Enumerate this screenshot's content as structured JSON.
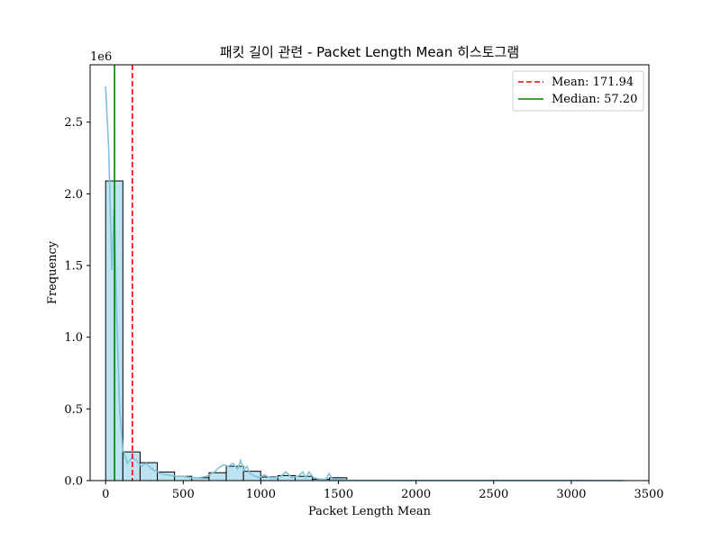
{
  "chart_data": {
    "type": "histogram",
    "title": "패킷 길이 관련 - Packet Length Mean 히스토그램",
    "xlabel": "Packet Length Mean",
    "ylabel": "Frequency",
    "y_offset_label": "1e6",
    "xlim": [
      -100,
      3500
    ],
    "ylim": [
      0,
      2.9
    ],
    "x_ticks": [
      0,
      500,
      1000,
      1500,
      2000,
      2500,
      3000,
      3500
    ],
    "x_tick_labels": [
      "0",
      "500",
      "1000",
      "1500",
      "2000",
      "2500",
      "3000",
      "3500"
    ],
    "y_ticks": [
      0,
      0.5,
      1.0,
      1.5,
      2.0,
      2.5
    ],
    "y_tick_labels": [
      "0.0",
      "0.5",
      "1.0",
      "1.5",
      "2.0",
      "2.5"
    ],
    "bins": [
      {
        "x0": 0,
        "x1": 111,
        "value": 2.09
      },
      {
        "x0": 111,
        "x1": 222,
        "value": 0.2
      },
      {
        "x0": 222,
        "x1": 333,
        "value": 0.125
      },
      {
        "x0": 333,
        "x1": 444,
        "value": 0.06
      },
      {
        "x0": 444,
        "x1": 555,
        "value": 0.03
      },
      {
        "x0": 555,
        "x1": 666,
        "value": 0.02
      },
      {
        "x0": 666,
        "x1": 777,
        "value": 0.055
      },
      {
        "x0": 777,
        "x1": 888,
        "value": 0.1
      },
      {
        "x0": 888,
        "x1": 999,
        "value": 0.065
      },
      {
        "x0": 999,
        "x1": 1110,
        "value": 0.025
      },
      {
        "x0": 1110,
        "x1": 1221,
        "value": 0.035
      },
      {
        "x0": 1221,
        "x1": 1332,
        "value": 0.03
      },
      {
        "x0": 1332,
        "x1": 1443,
        "value": 0.01
      },
      {
        "x0": 1443,
        "x1": 1554,
        "value": 0.02
      }
    ],
    "kde": {
      "x": [
        0,
        20,
        40,
        55,
        70,
        90,
        110,
        140,
        170,
        200,
        230,
        260,
        300,
        350,
        400,
        450,
        500,
        550,
        600,
        650,
        700,
        730,
        760,
        790,
        820,
        850,
        870,
        890,
        910,
        930,
        960,
        990,
        1020,
        1060,
        1100,
        1130,
        1160,
        1200,
        1240,
        1270,
        1290,
        1310,
        1340,
        1380,
        1420,
        1440,
        1460,
        1500,
        1560,
        1700,
        2000,
        2500,
        3000,
        3340
      ],
      "y": [
        2.75,
        2.3,
        1.47,
        1.9,
        1.2,
        0.5,
        0.22,
        0.12,
        0.16,
        0.14,
        0.1,
        0.12,
        0.08,
        0.05,
        0.04,
        0.03,
        0.03,
        0.02,
        0.02,
        0.03,
        0.06,
        0.09,
        0.11,
        0.1,
        0.12,
        0.08,
        0.14,
        0.07,
        0.1,
        0.05,
        0.03,
        0.02,
        0.04,
        0.02,
        0.02,
        0.03,
        0.06,
        0.02,
        0.03,
        0.06,
        0.02,
        0.06,
        0.02,
        0.01,
        0.01,
        0.05,
        0.01,
        0.01,
        0.003,
        0.002,
        0.001,
        0.001,
        0.001,
        0.0
      ],
      "color": "#7ec3d9"
    },
    "bar_fill": "#bde2f0",
    "bar_edge": "#000000",
    "mean": {
      "value": 171.94,
      "label": "Mean: 171.94",
      "color": "#ff0000",
      "style": "dashed"
    },
    "median": {
      "value": 57.2,
      "label": "Median: 57.20",
      "color": "#008000",
      "style": "solid"
    },
    "legend_position": "top-right",
    "grid": false
  }
}
